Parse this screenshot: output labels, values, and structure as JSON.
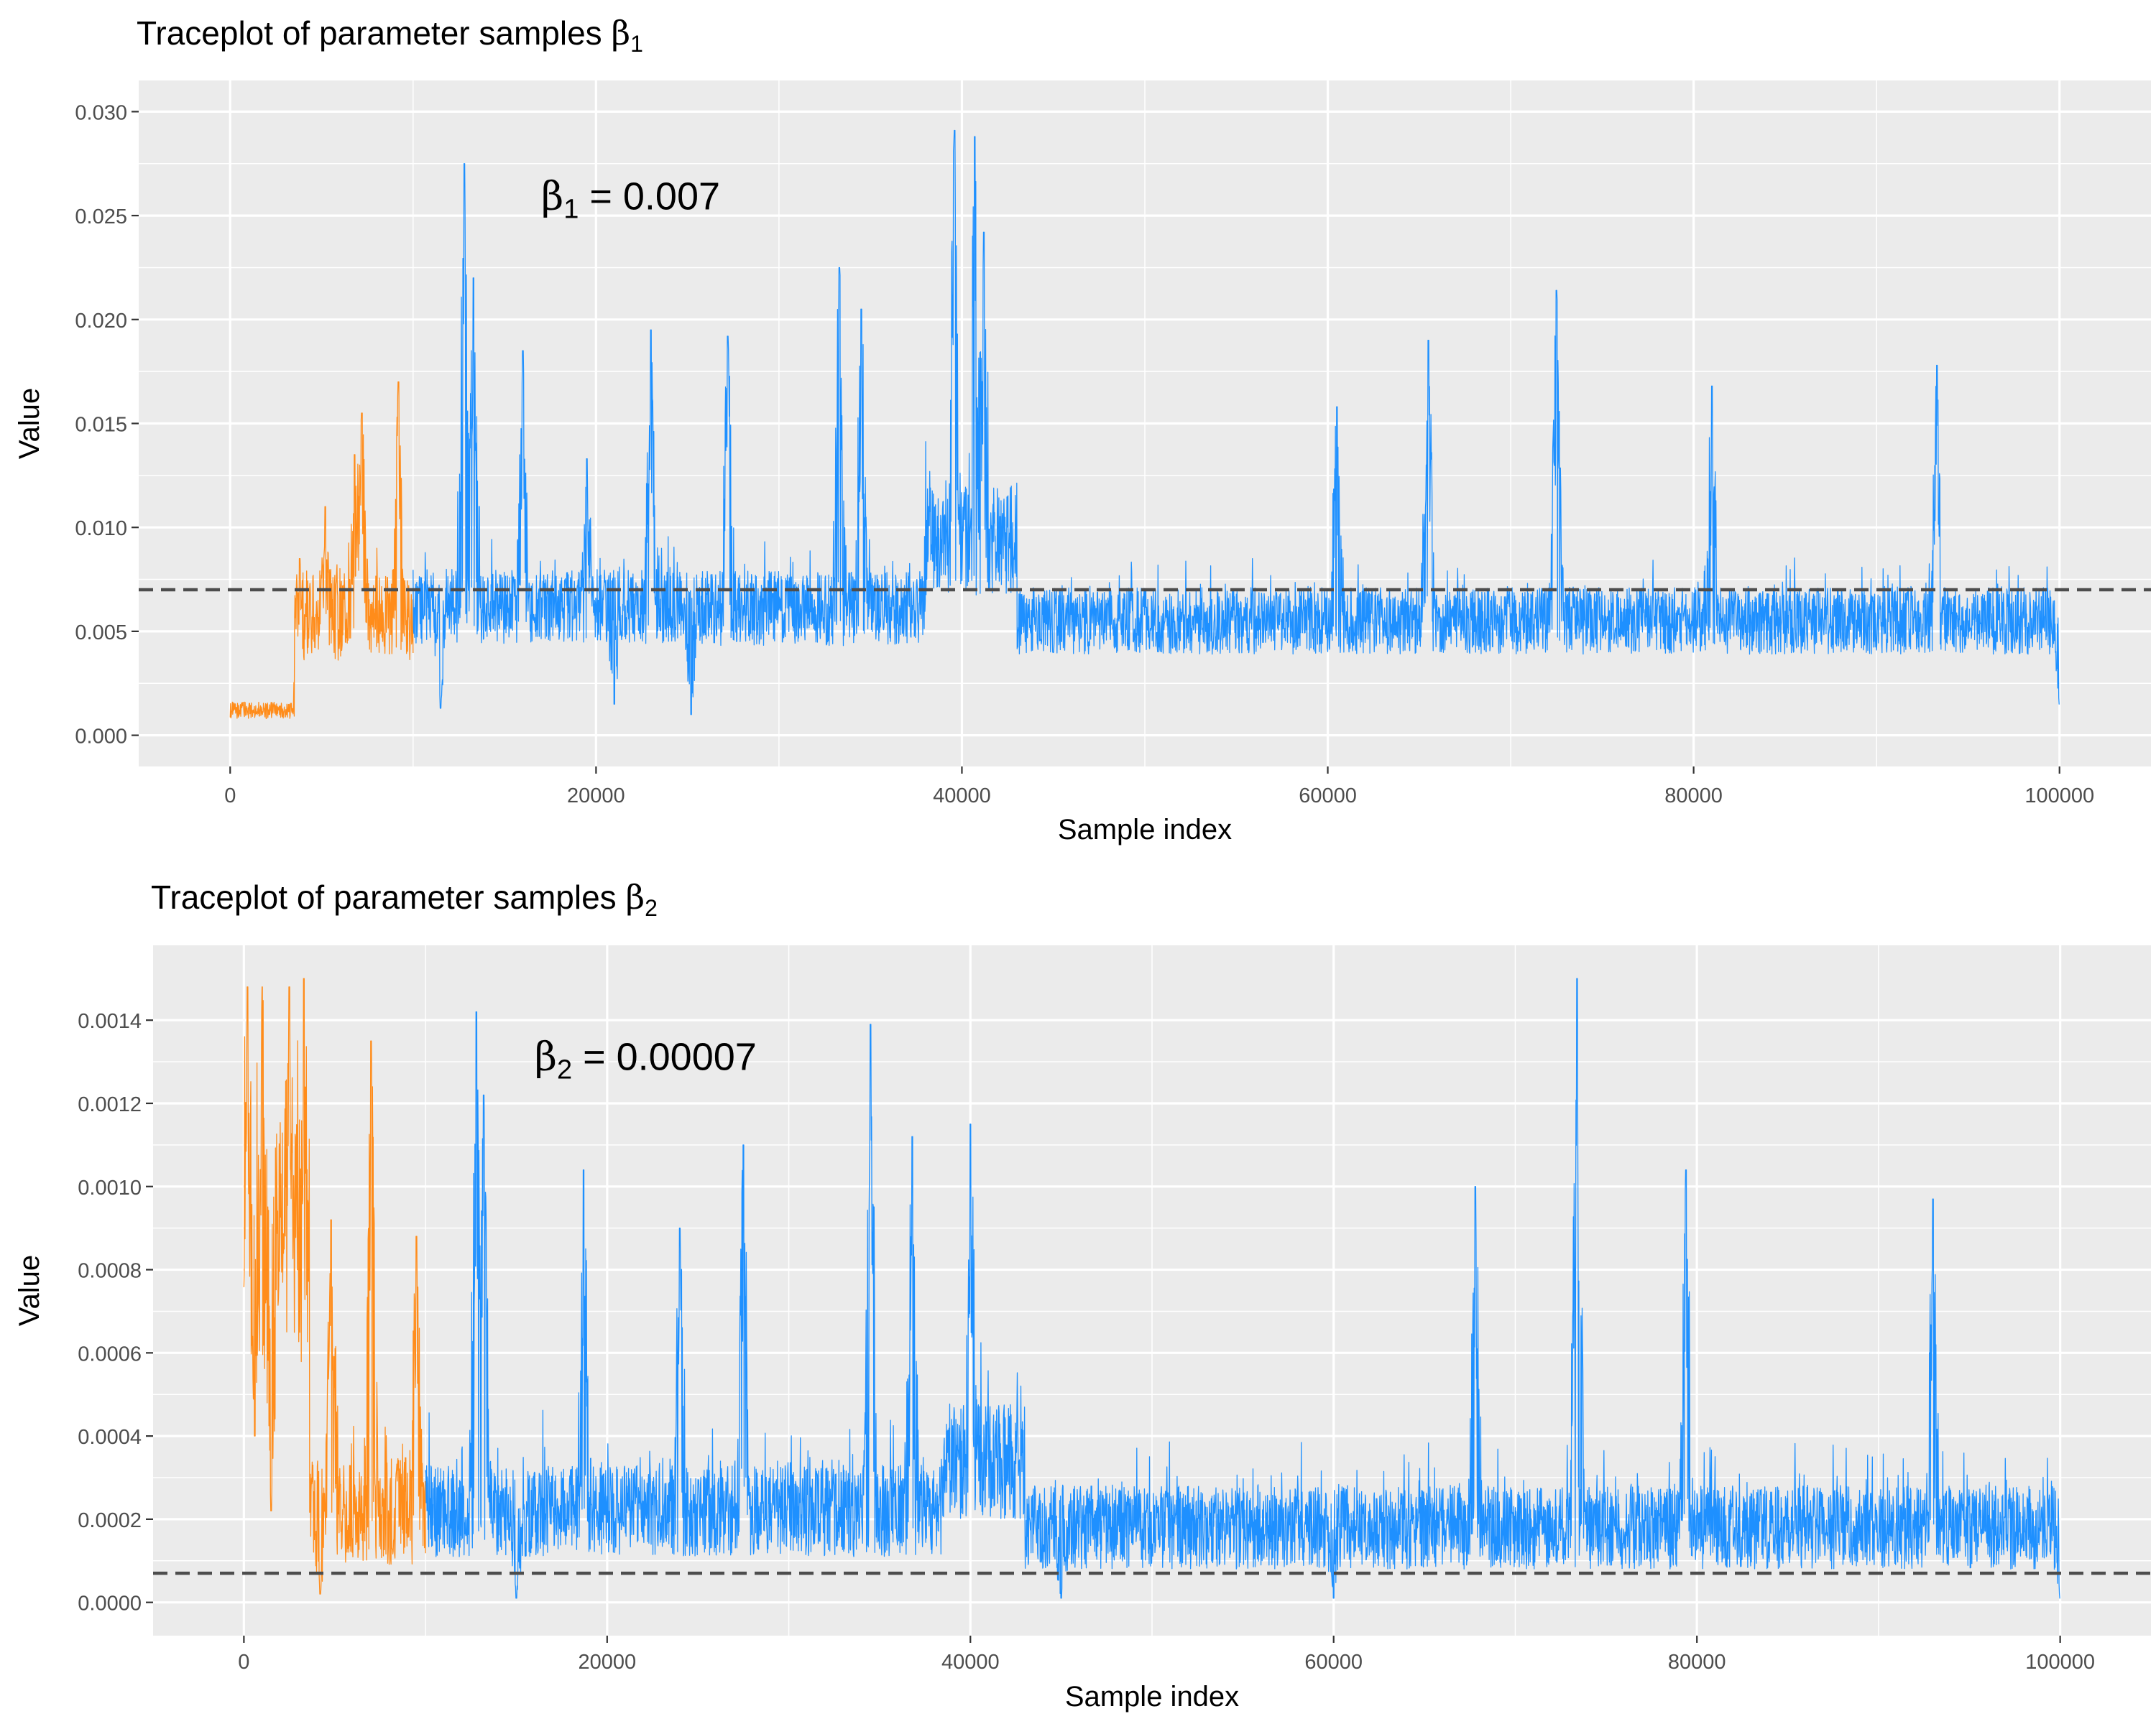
{
  "chart_data": [
    {
      "type": "line",
      "title_text": "Traceplot of parameter samples",
      "title_symbol": "β",
      "title_subscript": "1",
      "xlabel": "Sample index",
      "ylabel": "Value",
      "x_ticks": [
        "0",
        "20000",
        "40000",
        "60000",
        "80000",
        "100000"
      ],
      "y_ticks": [
        "0.000",
        "0.005",
        "0.010",
        "0.015",
        "0.020",
        "0.025",
        "0.030"
      ],
      "xlim": [
        -5000,
        105000
      ],
      "ylim": [
        -0.0015,
        0.0315
      ],
      "x_tick_values": [
        0,
        20000,
        40000,
        60000,
        80000,
        100000
      ],
      "y_tick_values": [
        0.0,
        0.005,
        0.01,
        0.015,
        0.02,
        0.025,
        0.03
      ],
      "grid": true,
      "reference_line": {
        "y": 0.007,
        "style": "dashed",
        "color": "#4d4d4d"
      },
      "annotation": {
        "symbol": "β",
        "subscript": "1",
        "text": "=  0.007",
        "x": 17000,
        "y": 0.0253
      },
      "colors": {
        "burnin": "#ff8c1a",
        "sampling": "#1e90ff",
        "panel": "#ebebeb",
        "grid": "#ffffff"
      },
      "series": [
        {
          "role": "burn-in",
          "color": "#ff8c1a",
          "x_range": [
            0,
            10000
          ],
          "segments": [
            {
              "x": [
                0,
                3500
              ],
              "level": 0.0012,
              "noise": 0.0004,
              "spike": 0.0
            },
            {
              "x": [
                3500,
                10000
              ],
              "level": 0.0058,
              "noise": 0.0022,
              "spike": 0.0007
            }
          ],
          "peaks": [
            [
              3800,
              0.0085
            ],
            [
              5200,
              0.011
            ],
            [
              6800,
              0.0135
            ],
            [
              7200,
              0.0155
            ],
            [
              9200,
              0.017
            ]
          ]
        },
        {
          "role": "sampling",
          "color": "#1e90ff",
          "x_range": [
            10000,
            100000
          ],
          "segments": [
            {
              "x": [
                10000,
                25000
              ],
              "level": 0.0062,
              "noise": 0.0018,
              "spike": 0.0007
            },
            {
              "x": [
                25000,
                38000
              ],
              "level": 0.0061,
              "noise": 0.0018,
              "spike": 0.0007
            },
            {
              "x": [
                38000,
                43000
              ],
              "level": 0.0095,
              "noise": 0.0028,
              "spike": 0.001
            },
            {
              "x": [
                43000,
                100000
              ],
              "level": 0.0055,
              "noise": 0.0016,
              "spike": 0.0006
            }
          ],
          "peaks": [
            [
              12800,
              0.0275
            ],
            [
              13300,
              0.022
            ],
            [
              16000,
              0.0185
            ],
            [
              19500,
              0.0133
            ],
            [
              23000,
              0.0195
            ],
            [
              27200,
              0.0192
            ],
            [
              33300,
              0.0225
            ],
            [
              34500,
              0.0205
            ],
            [
              39600,
              0.0291
            ],
            [
              40700,
              0.0288
            ],
            [
              41200,
              0.0242
            ],
            [
              60500,
              0.0158
            ],
            [
              65500,
              0.019
            ],
            [
              72500,
              0.0214
            ],
            [
              81000,
              0.0168
            ],
            [
              93300,
              0.0178
            ]
          ],
          "troughs": [
            [
              25200,
              0.001
            ],
            [
              11500,
              0.0013
            ],
            [
              21000,
              0.0015
            ],
            [
              100000,
              0.0015
            ]
          ]
        }
      ]
    },
    {
      "type": "line",
      "title_text": "Traceplot of parameter samples",
      "title_symbol": "β",
      "title_subscript": "2",
      "xlabel": "Sample index",
      "ylabel": "Value",
      "x_ticks": [
        "0",
        "20000",
        "40000",
        "60000",
        "80000",
        "100000"
      ],
      "y_ticks": [
        "0.0000",
        "0.0002",
        "0.0004",
        "0.0006",
        "0.0008",
        "0.0010",
        "0.0012",
        "0.0014"
      ],
      "xlim": [
        -5000,
        105000
      ],
      "ylim": [
        -8e-05,
        0.00158
      ],
      "x_tick_values": [
        0,
        20000,
        40000,
        60000,
        80000,
        100000
      ],
      "y_tick_values": [
        0.0,
        0.0002,
        0.0004,
        0.0006,
        0.0008,
        0.001,
        0.0012,
        0.0014
      ],
      "grid": true,
      "reference_line": {
        "y": 7e-05,
        "style": "dashed",
        "color": "#4d4d4d"
      },
      "annotation": {
        "symbol": "β",
        "subscript": "2",
        "text": "=  0.00007",
        "x": 16000,
        "y": 0.00128
      },
      "colors": {
        "burnin": "#ff8c1a",
        "sampling": "#1e90ff",
        "panel": "#ebebeb",
        "grid": "#ffffff"
      },
      "series": [
        {
          "role": "burn-in",
          "color": "#ff8c1a",
          "x_range": [
            0,
            10000
          ],
          "segments": [
            {
              "x": [
                0,
                3600
              ],
              "level": 0.00085,
              "noise": 0.00028,
              "spike": 0.0001
            },
            {
              "x": [
                3600,
                10000
              ],
              "level": 0.00022,
              "noise": 0.00013,
              "spike": 5e-05
            }
          ],
          "peaks": [
            [
              200,
              0.00148
            ],
            [
              1000,
              0.00148
            ],
            [
              2500,
              0.00148
            ],
            [
              3300,
              0.0015
            ],
            [
              4800,
              0.00092
            ],
            [
              7000,
              0.00135
            ],
            [
              9500,
              0.00088
            ]
          ],
          "troughs": [
            [
              600,
              0.0004
            ],
            [
              1500,
              0.00022
            ],
            [
              4200,
              2e-05
            ]
          ]
        },
        {
          "role": "sampling",
          "color": "#1e90ff",
          "x_range": [
            10000,
            100000
          ],
          "segments": [
            {
              "x": [
                10000,
                38500
              ],
              "level": 0.00022,
              "noise": 0.00011,
              "spike": 5e-05
            },
            {
              "x": [
                38500,
                43000
              ],
              "level": 0.00034,
              "noise": 0.00014,
              "spike": 6e-05
            },
            {
              "x": [
                43000,
                100000
              ],
              "level": 0.00018,
              "noise": 0.0001,
              "spike": 4e-05
            }
          ],
          "peaks": [
            [
              12800,
              0.00142
            ],
            [
              13200,
              0.00122
            ],
            [
              18700,
              0.00104
            ],
            [
              24000,
              0.0009
            ],
            [
              27500,
              0.0011
            ],
            [
              34500,
              0.00139
            ],
            [
              36800,
              0.00112
            ],
            [
              40000,
              0.00115
            ],
            [
              67800,
              0.001
            ],
            [
              73400,
              0.0015
            ],
            [
              79400,
              0.00104
            ],
            [
              93000,
              0.00097
            ]
          ],
          "troughs": [
            [
              15000,
              1e-05
            ],
            [
              45000,
              1e-05
            ],
            [
              60000,
              1e-05
            ],
            [
              100000,
              1e-05
            ]
          ]
        }
      ]
    }
  ]
}
